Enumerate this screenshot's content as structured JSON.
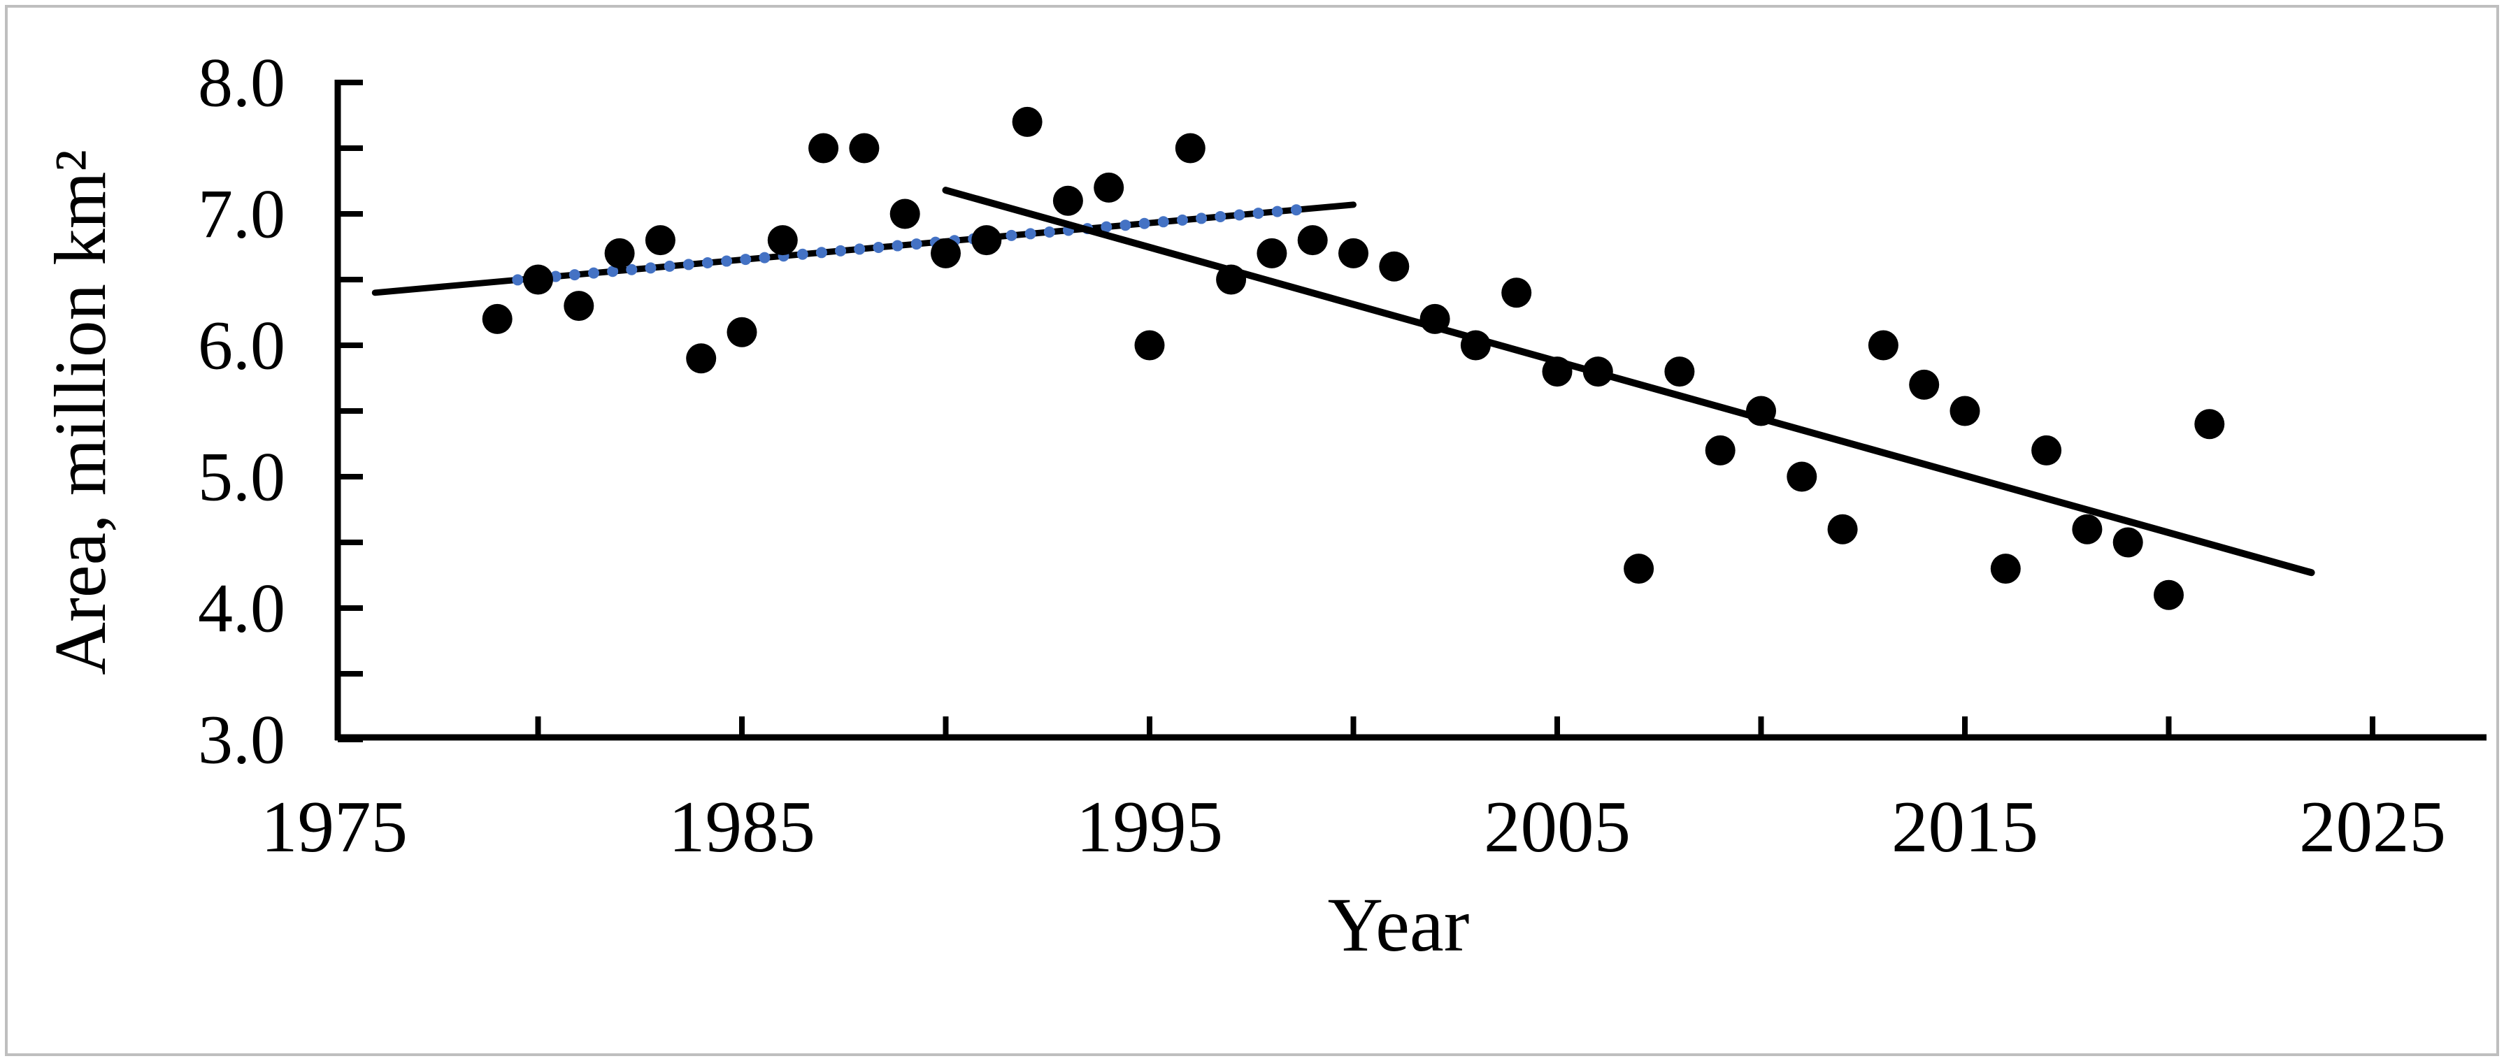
{
  "figure": {
    "background_color": "#ffffff",
    "border_color": "#bfbfbf"
  },
  "chart_data": {
    "type": "scatter",
    "title": "",
    "xlabel": "Year",
    "ylabel": "Area, million km²",
    "xlim": [
      1975,
      2027.5
    ],
    "ylim": [
      3.0,
      8.0
    ],
    "grid": false,
    "legend": null,
    "x_tick_interval": 5,
    "x_ticks": [
      1980,
      1985,
      1990,
      1995,
      2000,
      2005,
      2010,
      2015,
      2020,
      2025
    ],
    "x_tick_labels": [
      {
        "year": 1975,
        "label": "1975"
      },
      {
        "year": 1985,
        "label": "1985"
      },
      {
        "year": 1995,
        "label": "1995"
      },
      {
        "year": 2005,
        "label": "2005"
      },
      {
        "year": 2015,
        "label": "2015"
      },
      {
        "year": 2025,
        "label": "2025"
      }
    ],
    "y_minor_tick_step": 0.5,
    "y_tick_labels": [
      {
        "value": 8.0,
        "label": "8.0"
      },
      {
        "value": 7.0,
        "label": "7.0"
      },
      {
        "value": 6.0,
        "label": "6.0"
      },
      {
        "value": 5.0,
        "label": "5.0"
      },
      {
        "value": 4.0,
        "label": "4.0"
      },
      {
        "value": 3.0,
        "label": "3.0"
      }
    ],
    "series": [
      {
        "name": "annual-area",
        "marker": "circle",
        "color": "#000000",
        "x": [
          1979,
          1980,
          1981,
          1982,
          1983,
          1984,
          1985,
          1986,
          1987,
          1988,
          1989,
          1990,
          1991,
          1992,
          1993,
          1994,
          1995,
          1996,
          1997,
          1998,
          1999,
          2000,
          2001,
          2002,
          2003,
          2004,
          2005,
          2006,
          2007,
          2008,
          2009,
          2010,
          2011,
          2012,
          2013,
          2014,
          2015,
          2016,
          2017,
          2018,
          2019,
          2020,
          2021
        ],
        "y": [
          6.2,
          6.5,
          6.3,
          6.7,
          6.8,
          5.9,
          6.1,
          6.8,
          7.5,
          7.5,
          7.0,
          6.7,
          6.8,
          7.7,
          7.1,
          7.2,
          6.0,
          7.5,
          6.5,
          6.7,
          6.8,
          6.7,
          6.6,
          6.2,
          6.0,
          6.4,
          5.8,
          5.8,
          4.3,
          5.8,
          5.2,
          5.5,
          5.0,
          4.6,
          6.0,
          5.7,
          5.5,
          4.3,
          5.2,
          4.6,
          4.5,
          4.1,
          5.4
        ]
      }
    ],
    "trend_lines": [
      {
        "name": "early-period-trend",
        "color": "#000000",
        "x1": 1976.0,
        "y1": 6.4,
        "x2": 2000.0,
        "y2": 7.07,
        "stroke_width": 9,
        "overlay_dotted": {
          "color": "#4472C4",
          "x1": 1979.5,
          "x2": 1998.6,
          "dot_radius": 8,
          "dot_spacing": 27
        }
      },
      {
        "name": "late-period-trend",
        "color": "#000000",
        "x1": 1990.0,
        "y1": 7.18,
        "x2": 2023.5,
        "y2": 4.27,
        "stroke_width": 10,
        "overlay_dotted": null
      }
    ]
  }
}
